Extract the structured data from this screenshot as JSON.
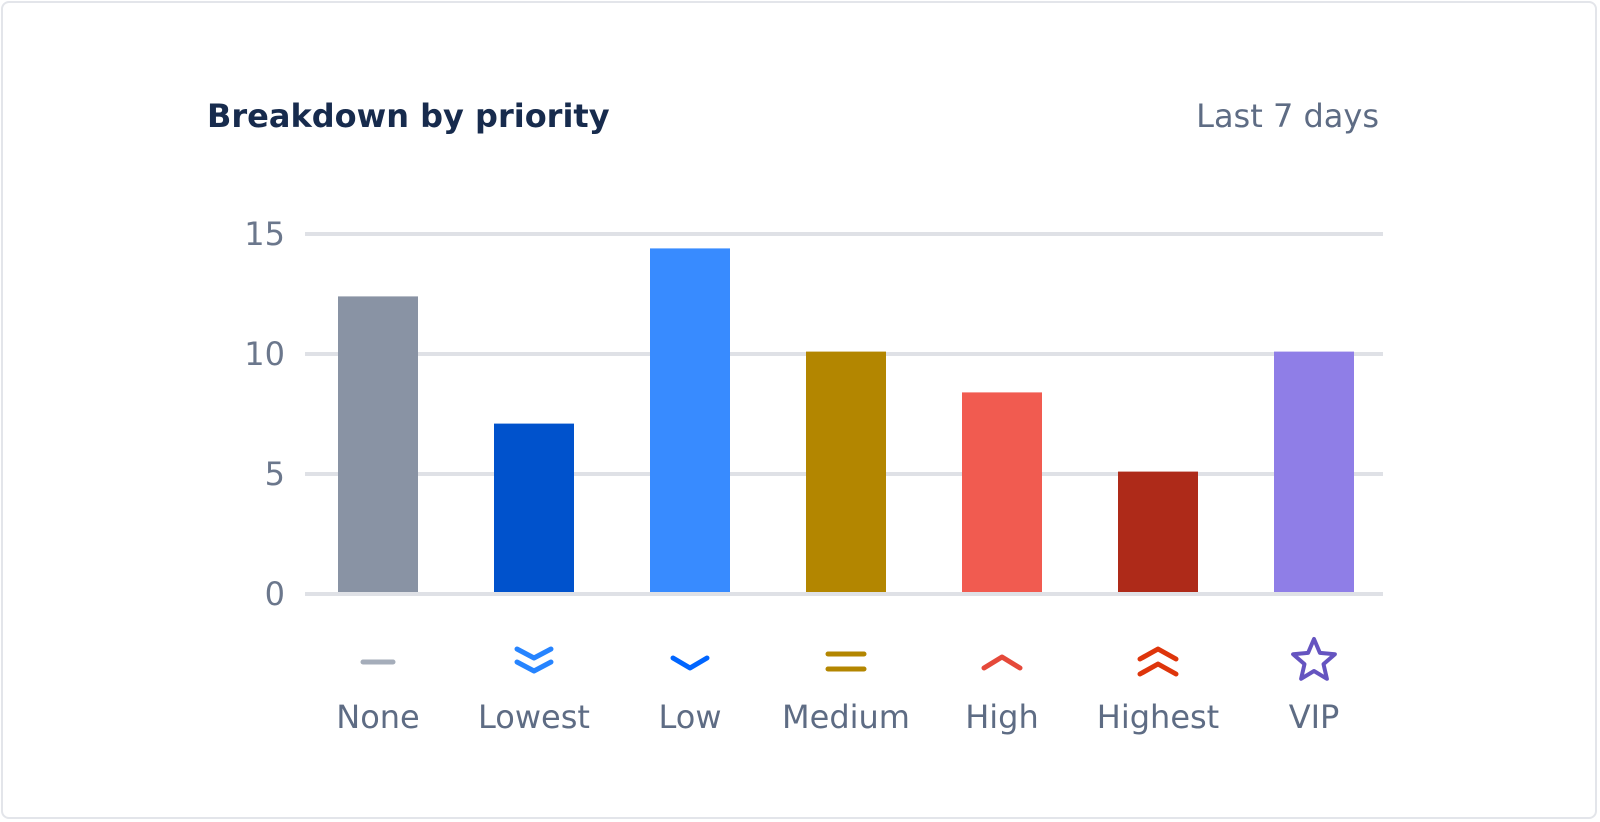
{
  "header": {
    "title": "Breakdown by priority",
    "range_label": "Last 7 days"
  },
  "chart_data": {
    "type": "bar",
    "title": "Breakdown by priority",
    "subtitle": "Last 7 days",
    "categories": [
      "None",
      "Lowest",
      "Low",
      "Medium",
      "High",
      "Highest",
      "VIP"
    ],
    "values": [
      12.4,
      7.1,
      14.4,
      10.1,
      8.4,
      5.1,
      10.1
    ],
    "colors": [
      "#8993a4",
      "#0052cc",
      "#388bff",
      "#b38600",
      "#f15b50",
      "#ae2a19",
      "#8f7ee7"
    ],
    "icons": [
      "priority-none-icon",
      "priority-lowest-icon",
      "priority-low-icon",
      "priority-medium-icon",
      "priority-high-icon",
      "priority-highest-icon",
      "priority-vip-icon"
    ],
    "icon_colors": [
      "#a5adba",
      "#2684ff",
      "#0065ff",
      "#b38600",
      "#e5493a",
      "#de350b",
      "#6554c0"
    ],
    "yticks": [
      0,
      5,
      10,
      15
    ],
    "ylim": [
      0,
      15
    ],
    "grid": true,
    "legend": "none"
  }
}
